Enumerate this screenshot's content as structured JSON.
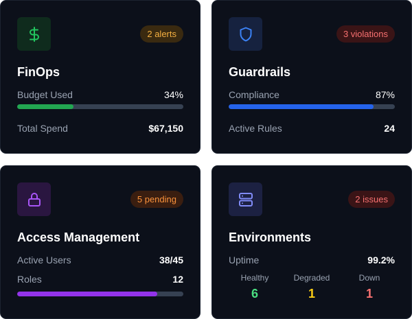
{
  "cards": {
    "finops": {
      "icon": "dollar-icon",
      "badge": "2 alerts",
      "title": "FinOps",
      "budget_label": "Budget Used",
      "budget_value": "34%",
      "budget_fraction": 0.34,
      "spend_label": "Total Spend",
      "spend_value": "$67,150",
      "colors": {
        "tile": "#0f2b1d",
        "icon": "#22c55e",
        "bar": "#22a651",
        "badge_bg": "#3a2a10",
        "badge_fg": "#f5b041"
      }
    },
    "guardrails": {
      "icon": "shield-icon",
      "badge": "3 violations",
      "title": "Guardrails",
      "compliance_label": "Compliance",
      "compliance_value": "87%",
      "compliance_fraction": 0.87,
      "rules_label": "Active Rules",
      "rules_value": "24",
      "colors": {
        "tile": "#16223f",
        "icon": "#3b82f6",
        "bar": "#2563eb",
        "badge_bg": "#3a1416",
        "badge_fg": "#f87171"
      }
    },
    "access": {
      "icon": "lock-icon",
      "badge": "5 pending",
      "title": "Access Management",
      "users_label": "Active Users",
      "users_value": "38/45",
      "roles_label": "Roles",
      "roles_value": "12",
      "users_fraction": 0.844,
      "colors": {
        "tile": "#2a1640",
        "icon": "#a855f7",
        "bar": "#9333ea",
        "badge_bg": "#3a1e10",
        "badge_fg": "#fb923c"
      }
    },
    "environments": {
      "icon": "server-icon",
      "badge": "2 issues",
      "title": "Environments",
      "uptime_label": "Uptime",
      "uptime_value": "99.2%",
      "healthy_label": "Healthy",
      "healthy_value": "6",
      "degraded_label": "Degraded",
      "degraded_value": "1",
      "down_label": "Down",
      "down_value": "1",
      "colors": {
        "tile": "#1c2142",
        "icon": "#818cf8",
        "healthy": "#4ade80",
        "degraded": "#facc15",
        "down": "#f87171",
        "badge_bg": "#3a1416",
        "badge_fg": "#f87171"
      }
    }
  }
}
